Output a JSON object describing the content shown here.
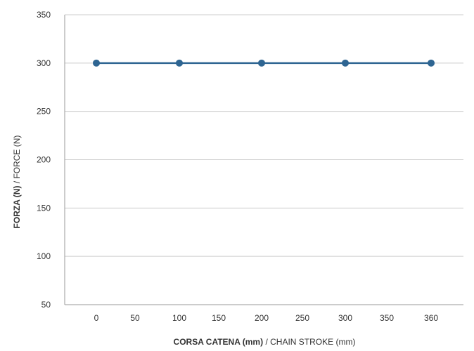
{
  "chart_data": {
    "type": "line",
    "x_categories": [
      "0",
      "50",
      "100",
      "150",
      "200",
      "250",
      "300",
      "350",
      "360"
    ],
    "series": [
      {
        "points": [
          {
            "x": 0,
            "y": 300
          },
          {
            "x": 100,
            "y": 300
          },
          {
            "x": 200,
            "y": 300
          },
          {
            "x": 300,
            "y": 300
          },
          {
            "x": 360,
            "y": 300
          }
        ]
      }
    ],
    "y_ticks": [
      50,
      100,
      150,
      200,
      250,
      300,
      350
    ],
    "ylim": [
      50,
      350
    ],
    "xlabel_bold": "CORSA CATENA (mm)",
    "xlabel_rest": " / CHAIN STROKE (mm)",
    "ylabel_bold": "FORZA (N)",
    "ylabel_rest": " / FORCE (N)",
    "grid": true,
    "colors": {
      "series": "#2e6592",
      "grid": "#cccccc",
      "axis": "#999999",
      "text": "#333333"
    }
  }
}
